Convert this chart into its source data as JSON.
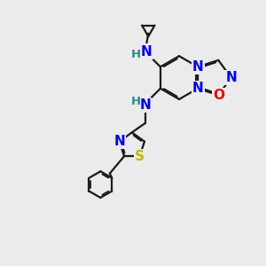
{
  "background_color": "#ebebeb",
  "bond_color": "#1a1a1a",
  "bond_width": 1.6,
  "atom_colors": {
    "N": "#0000ee",
    "O": "#ee0000",
    "S": "#bbbb00",
    "H": "#2a8a8a",
    "C": "#1a1a1a"
  },
  "font_size_atoms": 11,
  "font_size_H": 9.5,
  "fig_width": 3.0,
  "fig_height": 3.0
}
